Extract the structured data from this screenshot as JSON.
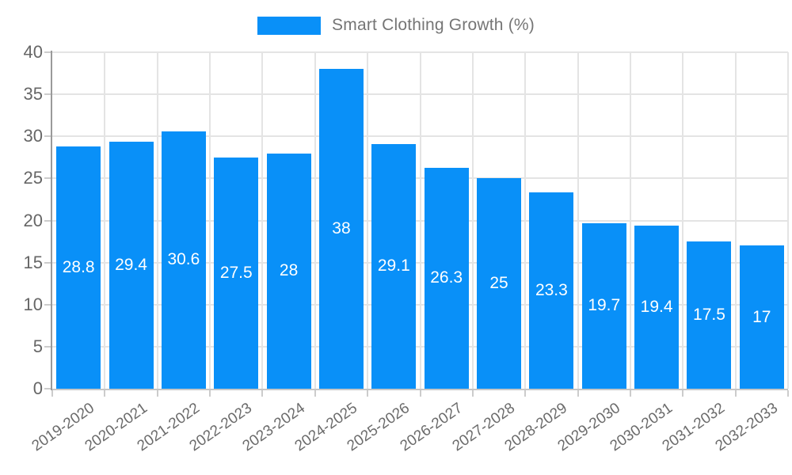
{
  "legend": {
    "label": "Smart Clothing Growth (%)",
    "swatch_color": "#0990f8"
  },
  "chart_data": {
    "type": "bar",
    "title": "",
    "xlabel": "",
    "ylabel": "",
    "categories": [
      "2019-2020",
      "2020-2021",
      "2021-2022",
      "2022-2023",
      "2023-2024",
      "2024-2025",
      "2025-2026",
      "2026-2027",
      "2027-2028",
      "2028-2029",
      "2029-2030",
      "2030-2031",
      "2031-2032",
      "2032-2033"
    ],
    "series": [
      {
        "name": "Smart Clothing Growth (%)",
        "values": [
          28.8,
          29.4,
          30.6,
          27.5,
          28,
          38,
          29.1,
          26.3,
          25,
          23.3,
          19.7,
          19.4,
          17.5,
          17
        ]
      }
    ],
    "value_labels": [
      "28.8",
      "29.4",
      "30.6",
      "27.5",
      "28",
      "38",
      "29.1",
      "26.3",
      "25",
      "23.3",
      "19.7",
      "19.4",
      "17.5",
      "17"
    ],
    "ylim": [
      0,
      40
    ],
    "yticks": [
      0,
      5,
      10,
      15,
      20,
      25,
      30,
      35,
      40
    ],
    "grid": true,
    "legend_position": "top",
    "bar_color": "#0990f8",
    "value_label_color": "#ffffff",
    "axis_text_color": "#666666"
  }
}
